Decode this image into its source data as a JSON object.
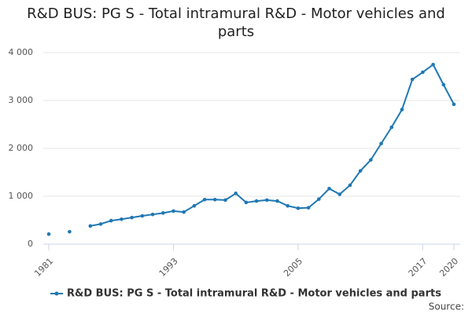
{
  "chart_data": {
    "type": "line",
    "title": "R&D BUS: PG S - Total intramural R&D - Motor vehicles and parts",
    "source": "Source:",
    "x": [
      1981,
      1982,
      1983,
      1984,
      1985,
      1986,
      1987,
      1988,
      1989,
      1990,
      1991,
      1992,
      1993,
      1994,
      1995,
      1996,
      1997,
      1998,
      1999,
      2000,
      2001,
      2002,
      2003,
      2004,
      2005,
      2006,
      2007,
      2008,
      2009,
      2010,
      2011,
      2012,
      2013,
      2014,
      2015,
      2016,
      2017,
      2018,
      2019,
      2020
    ],
    "series": [
      {
        "name": "R&D BUS: PG S - Total intramural R&D - Motor vehicles and parts",
        "color": "#1f78b4",
        "values": [
          210,
          null,
          260,
          null,
          380,
          420,
          490,
          520,
          555,
          590,
          620,
          650,
          690,
          670,
          800,
          930,
          930,
          920,
          1060,
          870,
          900,
          920,
          900,
          800,
          750,
          760,
          940,
          1160,
          1040,
          1230,
          1530,
          1760,
          2100,
          2440,
          2810,
          3440,
          3590,
          3750,
          3330,
          2920
        ]
      }
    ],
    "xlim": [
      1981,
      2020
    ],
    "xticks": [
      1981,
      1993,
      2005,
      2017,
      2020
    ],
    "ylim": [
      0,
      4000
    ],
    "yticks": [
      0,
      {
        "value": 1000,
        "label": "1 000"
      },
      {
        "value": 2000,
        "label": "2 000"
      },
      {
        "value": 3000,
        "label": "3 000"
      },
      {
        "value": 4000,
        "label": "4 000"
      }
    ],
    "grid": true,
    "legend": "bottom"
  }
}
